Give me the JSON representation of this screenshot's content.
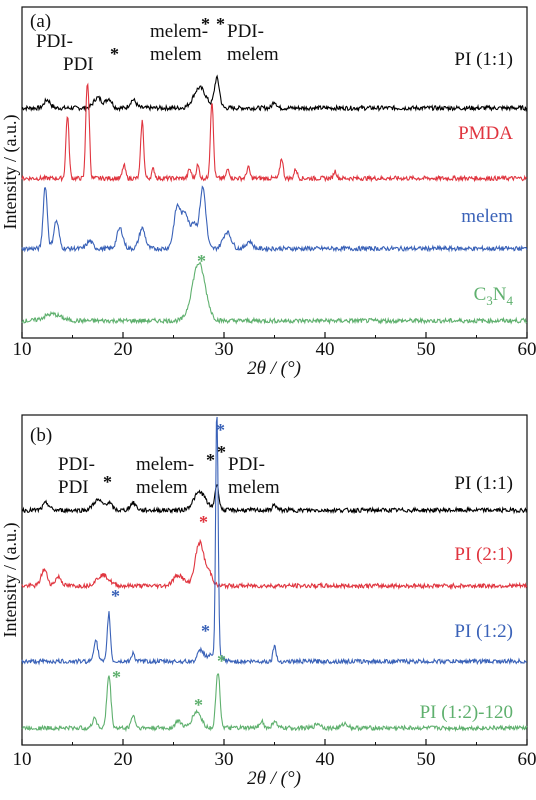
{
  "panels": [
    {
      "label": "(a)",
      "ylabel": "Intensity / (a.u.)",
      "xlabel": "2θ / (°)",
      "annotations": [
        "PDI-",
        "PDI",
        "melem-",
        "melem",
        "PDI-",
        "melem"
      ],
      "traces": [
        {
          "name": "PI (1:1)",
          "color": "#000000"
        },
        {
          "name": "PMDA",
          "color": "#e0353f"
        },
        {
          "name": "melem",
          "color": "#3a62b8"
        },
        {
          "name": "C3N4",
          "color": "#5fb06e"
        }
      ]
    },
    {
      "label": "(b)",
      "ylabel": "Intensity / (a.u.)",
      "xlabel": "2θ / (°)",
      "annotations": [
        "PDI-",
        "PDI",
        "melem-",
        "melem",
        "PDI-",
        "melem"
      ],
      "traces": [
        {
          "name": "PI (1:1)",
          "color": "#000000"
        },
        {
          "name": "PI (2:1)",
          "color": "#e0353f"
        },
        {
          "name": "PI (1:2)",
          "color": "#3a62b8"
        },
        {
          "name": "PI (1:2)-120",
          "color": "#5fb06e"
        }
      ]
    }
  ],
  "chart_data": [
    {
      "type": "line",
      "xlim": [
        10,
        60
      ],
      "xticks": [
        10,
        20,
        30,
        40,
        50,
        60
      ],
      "yticks": "none",
      "series": [
        {
          "name": "PI (1:1)",
          "color": "#000000",
          "baseline": 6.0,
          "peaks": [
            [
              12.5,
              0.22,
              0.3
            ],
            [
              17.5,
              0.28,
              0.4
            ],
            [
              18.6,
              0.25,
              0.3
            ],
            [
              21.0,
              0.22,
              0.3
            ],
            [
              27.6,
              0.55,
              0.6
            ],
            [
              29.3,
              0.8,
              0.25
            ],
            [
              35.0,
              0.18,
              0.2
            ]
          ]
        },
        {
          "name": "PMDA",
          "color": "#e0353f",
          "baseline": 4.1,
          "peaks": [
            [
              14.5,
              1.7,
              0.15
            ],
            [
              16.4,
              1.95,
              0.12
            ],
            [
              16.6,
              1.6,
              0.12
            ],
            [
              20.1,
              0.35,
              0.15
            ],
            [
              21.9,
              1.55,
              0.15
            ],
            [
              23.0,
              0.25,
              0.15
            ],
            [
              26.6,
              0.25,
              0.15
            ],
            [
              27.4,
              0.35,
              0.15
            ],
            [
              28.8,
              2.1,
              0.15
            ],
            [
              30.4,
              0.25,
              0.15
            ],
            [
              32.4,
              0.3,
              0.15
            ],
            [
              35.7,
              0.55,
              0.15
            ],
            [
              37.1,
              0.25,
              0.15
            ],
            [
              41.0,
              0.2,
              0.15
            ]
          ]
        },
        {
          "name": "melem",
          "color": "#3a62b8",
          "baseline": 2.2,
          "peaks": [
            [
              12.3,
              1.7,
              0.2
            ],
            [
              13.4,
              0.75,
              0.25
            ],
            [
              16.7,
              0.2,
              0.3
            ],
            [
              19.7,
              0.55,
              0.3
            ],
            [
              21.9,
              0.55,
              0.3
            ],
            [
              25.4,
              1.15,
              0.35
            ],
            [
              26.2,
              0.9,
              0.3
            ],
            [
              27.0,
              0.7,
              0.3
            ],
            [
              27.9,
              1.65,
              0.3
            ],
            [
              30.3,
              0.45,
              0.4
            ],
            [
              32.5,
              0.2,
              0.3
            ]
          ]
        },
        {
          "name": "C3N4",
          "color": "#5fb06e",
          "baseline": 0.25,
          "peaks": [
            [
              13.0,
              0.18,
              0.8
            ],
            [
              27.5,
              1.55,
              0.65
            ]
          ]
        }
      ]
    },
    {
      "type": "line",
      "xlim": [
        10,
        60
      ],
      "xticks": [
        10,
        20,
        30,
        40,
        50,
        60
      ],
      "yticks": "none",
      "series": [
        {
          "name": "PI (1:1)",
          "color": "#000000",
          "baseline": 6.3,
          "peaks": [
            [
              12.4,
              0.2,
              0.3
            ],
            [
              17.5,
              0.28,
              0.45
            ],
            [
              18.6,
              0.2,
              0.3
            ],
            [
              21.0,
              0.2,
              0.3
            ],
            [
              27.6,
              0.5,
              0.6
            ],
            [
              29.3,
              0.7,
              0.2
            ],
            [
              35.0,
              0.15,
              0.2
            ]
          ]
        },
        {
          "name": "PI (2:1)",
          "color": "#e0353f",
          "baseline": 4.2,
          "peaks": [
            [
              12.2,
              0.45,
              0.3
            ],
            [
              13.6,
              0.25,
              0.3
            ],
            [
              18.0,
              0.3,
              0.6
            ],
            [
              25.5,
              0.3,
              0.5
            ],
            [
              27.6,
              1.2,
              0.45
            ],
            [
              28.6,
              0.3,
              0.3
            ]
          ]
        },
        {
          "name": "PI (1:2)",
          "color": "#3a62b8",
          "baseline": 2.1,
          "peaks": [
            [
              17.3,
              0.6,
              0.2
            ],
            [
              18.6,
              1.35,
              0.15
            ],
            [
              21.0,
              0.25,
              0.15
            ],
            [
              27.7,
              0.3,
              0.3
            ],
            [
              29.3,
              7.0,
              0.12
            ],
            [
              35.0,
              0.45,
              0.15
            ],
            [
              29.0,
              0.2,
              0.6
            ]
          ]
        },
        {
          "name": "PI (1:2)-120",
          "color": "#5fb06e",
          "baseline": 0.25,
          "peaks": [
            [
              17.2,
              0.3,
              0.2
            ],
            [
              18.6,
              1.45,
              0.2
            ],
            [
              21.0,
              0.35,
              0.2
            ],
            [
              25.5,
              0.2,
              0.3
            ],
            [
              27.3,
              0.45,
              0.45
            ],
            [
              29.4,
              1.55,
              0.2
            ],
            [
              33.7,
              0.2,
              0.2
            ],
            [
              35.0,
              0.2,
              0.2
            ],
            [
              39.3,
              0.12,
              0.3
            ],
            [
              42.0,
              0.12,
              0.3
            ]
          ]
        }
      ]
    }
  ]
}
